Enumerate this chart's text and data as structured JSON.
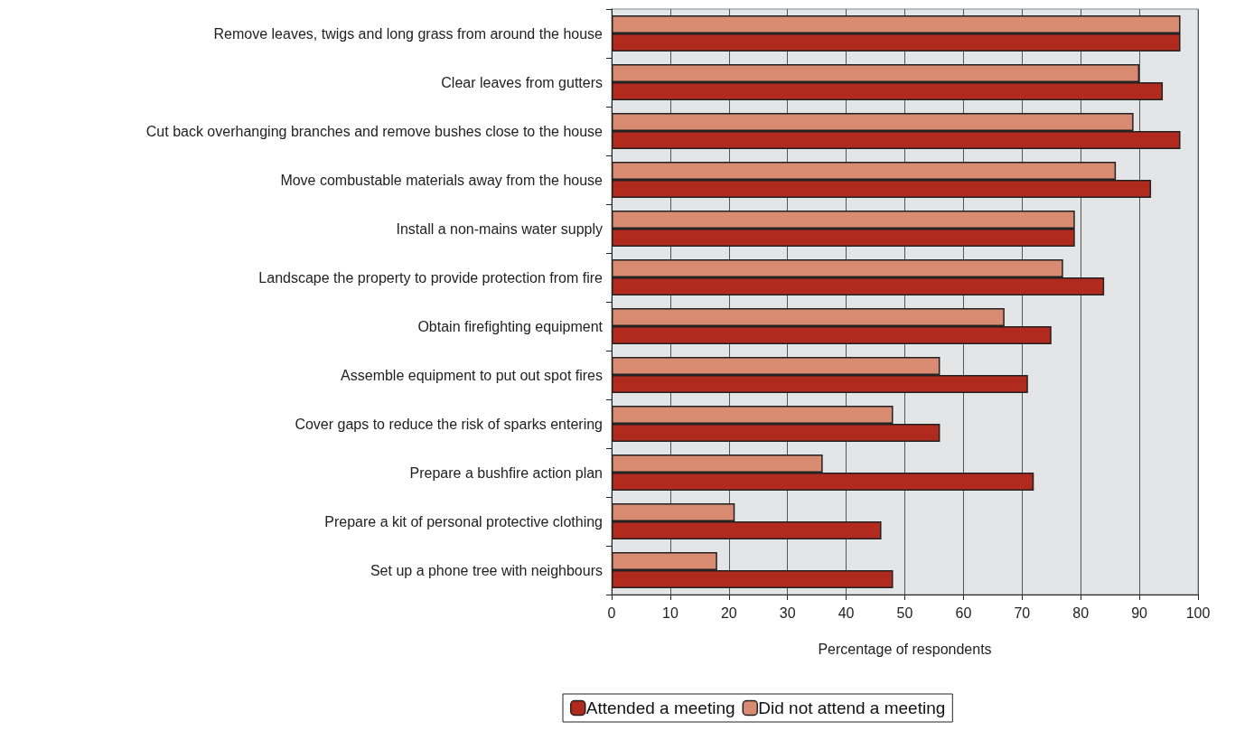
{
  "chart_data": {
    "type": "bar",
    "orientation": "horizontal",
    "xlabel": "Percentage of respondents",
    "categories": [
      "Remove leaves, twigs and long grass from around the house",
      "Clear leaves from gutters",
      "Cut back overhanging branches and remove bushes close to the house",
      "Move combustable materials away from the house",
      "Install a non-mains water supply",
      "Landscape the property to provide protection from fire",
      "Obtain firefighting equipment",
      "Assemble equipment to put out spot fires",
      "Cover gaps to reduce the risk of sparks entering",
      "Prepare a bushfire action plan",
      "Prepare a kit of personal protective clothing",
      "Set up a phone tree with neighbours"
    ],
    "series": [
      {
        "name": "Attended a meeting",
        "color": "#b02a1e",
        "values": [
          97,
          94,
          97,
          92,
          79,
          84,
          75,
          71,
          56,
          72,
          46,
          48
        ]
      },
      {
        "name": "Did not attend a meeting",
        "color": "#d98b72",
        "values": [
          97,
          90,
          89,
          86,
          79,
          77,
          67,
          56,
          48,
          36,
          21,
          18
        ]
      }
    ],
    "xlim": [
      0,
      100
    ],
    "xticks": [
      0,
      10,
      20,
      30,
      40,
      50,
      60,
      70,
      80,
      90,
      100
    ],
    "grid": "x",
    "legend": "bottom"
  }
}
